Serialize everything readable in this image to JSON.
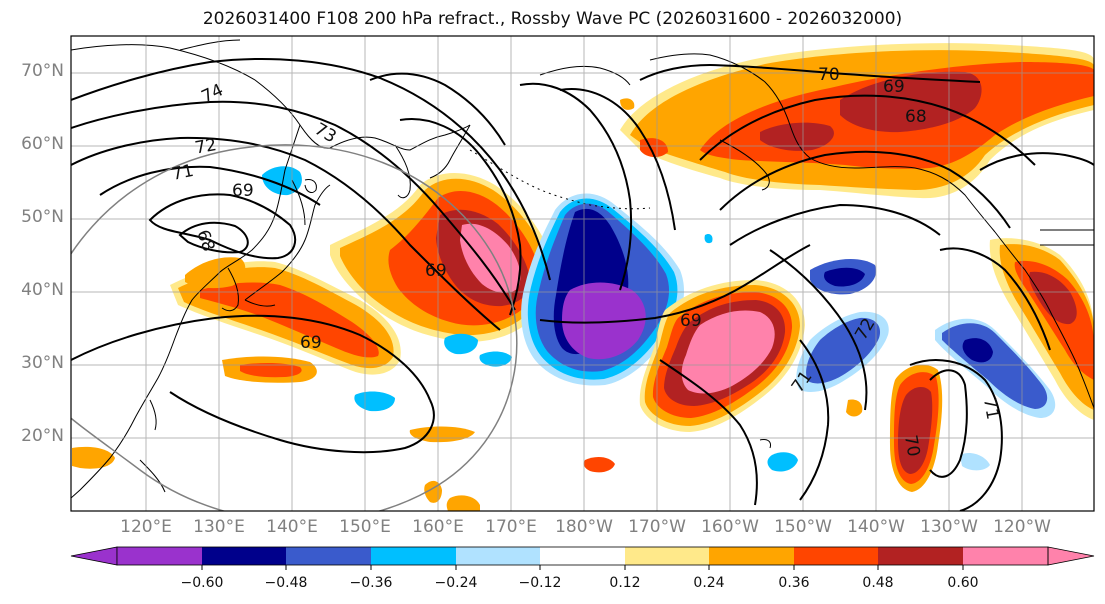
{
  "title": "2026031400 F108 200 hPa refract., Rossby Wave PC (2026031600 - 2026032000)",
  "lat_labels": [
    "70°N",
    "60°N",
    "50°N",
    "40°N",
    "30°N",
    "20°N"
  ],
  "lon_labels": [
    "120°E",
    "130°E",
    "140°E",
    "150°E",
    "160°E",
    "170°E",
    "180°W",
    "170°W",
    "160°W",
    "150°W",
    "140°W",
    "130°W",
    "120°W"
  ],
  "colorbar": {
    "ticks": [
      "−0.60",
      "−0.48",
      "−0.36",
      "−0.24",
      "−0.12",
      "0.12",
      "0.24",
      "0.36",
      "0.48",
      "0.60"
    ],
    "colors": [
      "#9a32cd",
      "#00008b",
      "#3a5bcc",
      "#00bfff",
      "#b0e2ff",
      "#ffffff",
      "#ffe98a",
      "#ffa500",
      "#ff4500",
      "#b22222",
      "#ff82ab"
    ]
  },
  "contour_labels": [
    "74",
    "73",
    "72",
    "71",
    "69",
    "68",
    "69",
    "69",
    "69",
    "70",
    "69",
    "68",
    "72",
    "71",
    "71",
    "70"
  ]
}
